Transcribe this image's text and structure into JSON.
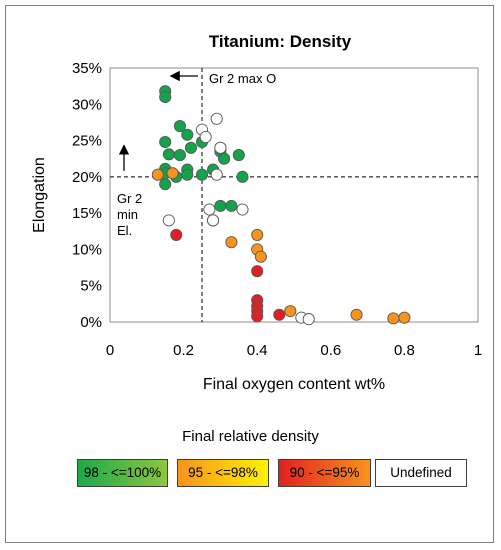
{
  "chart_data": {
    "type": "scatter",
    "title": "Titanium: Density",
    "xlabel": "Final oxygen content wt%",
    "ylabel": "Elongation",
    "xlim": [
      0,
      1
    ],
    "ylim": [
      0,
      35
    ],
    "x_ticks": [
      "0",
      "0.2",
      "0.4",
      "0.6",
      "0.8",
      "1"
    ],
    "y_ticks": [
      "0%",
      "5%",
      "10%",
      "15%",
      "20%",
      "25%",
      "30%",
      "35%"
    ],
    "grid": false,
    "reference_lines": [
      {
        "orientation": "vertical",
        "x": 0.25,
        "style": "dashed",
        "label": "Gr 2 max O"
      },
      {
        "orientation": "horizontal",
        "y": 20,
        "style": "dashed",
        "label": "Gr 2 min El."
      }
    ],
    "legend": {
      "title": "Final relative density",
      "placement": "bottom",
      "entries": [
        {
          "label": "98 - <=100%",
          "color": "#1fa84a"
        },
        {
          "label": "95 - <=98%",
          "color": "#f7a11a"
        },
        {
          "label": "90 - <=95%",
          "color": "#e3261e"
        },
        {
          "label": "Undefined",
          "color": "#ffffff"
        }
      ]
    },
    "series": [
      {
        "name": "98 - <=100%",
        "color": "#13a34a",
        "points": [
          [
            0.15,
            31.8
          ],
          [
            0.15,
            31.0
          ],
          [
            0.15,
            24.8
          ],
          [
            0.16,
            23.1
          ],
          [
            0.15,
            21.1
          ],
          [
            0.15,
            20.5
          ],
          [
            0.15,
            19.0
          ],
          [
            0.19,
            27.0
          ],
          [
            0.19,
            23.0
          ],
          [
            0.21,
            25.8
          ],
          [
            0.22,
            24.0
          ],
          [
            0.21,
            21.0
          ],
          [
            0.21,
            20.3
          ],
          [
            0.18,
            20.0
          ],
          [
            0.25,
            24.8
          ],
          [
            0.25,
            20.3
          ],
          [
            0.28,
            21.0
          ],
          [
            0.3,
            23.5
          ],
          [
            0.31,
            22.5
          ],
          [
            0.3,
            24.0
          ],
          [
            0.35,
            23.0
          ],
          [
            0.36,
            20.0
          ],
          [
            0.3,
            16.0
          ],
          [
            0.33,
            16.0
          ],
          [
            0.28,
            14.0
          ]
        ]
      },
      {
        "name": "95 - <=98%",
        "color": "#f7941d",
        "points": [
          [
            0.13,
            20.3
          ],
          [
            0.17,
            20.5
          ],
          [
            0.33,
            11.0
          ],
          [
            0.4,
            12.0
          ],
          [
            0.4,
            10.0
          ],
          [
            0.41,
            9.0
          ],
          [
            0.49,
            1.5
          ],
          [
            0.67,
            1.0
          ],
          [
            0.77,
            0.5
          ],
          [
            0.8,
            0.6
          ]
        ]
      },
      {
        "name": "90 - <=95%",
        "color": "#e31e24",
        "points": [
          [
            0.18,
            12.0
          ],
          [
            0.4,
            7.0
          ],
          [
            0.4,
            3.0
          ],
          [
            0.4,
            2.2
          ],
          [
            0.4,
            1.5
          ],
          [
            0.4,
            0.8
          ],
          [
            0.46,
            1.0
          ]
        ]
      },
      {
        "name": "Undefined",
        "color": "#ffffff",
        "points": [
          [
            0.16,
            14.0
          ],
          [
            0.25,
            26.5
          ],
          [
            0.29,
            28.0
          ],
          [
            0.26,
            25.5
          ],
          [
            0.3,
            24.0
          ],
          [
            0.27,
            15.5
          ],
          [
            0.28,
            14.0
          ],
          [
            0.29,
            20.3
          ],
          [
            0.36,
            15.5
          ],
          [
            0.52,
            0.6
          ],
          [
            0.54,
            0.4
          ]
        ]
      }
    ]
  }
}
